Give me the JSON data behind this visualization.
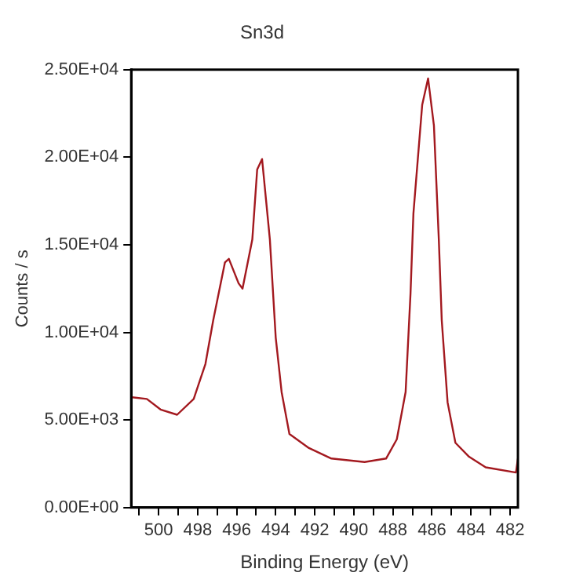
{
  "chart_data": {
    "type": "line",
    "title": "Sn3d",
    "xlabel": "Binding Energy (eV)",
    "ylabel": "Counts / s",
    "xlim": [
      501.4,
      481.6
    ],
    "xticks": [
      {
        "value": 501,
        "label": null
      },
      500,
      {
        "value": 499,
        "label": null
      },
      498,
      {
        "value": 497,
        "label": null
      },
      496,
      {
        "value": 495,
        "label": null
      },
      494,
      {
        "value": 493,
        "label": null
      },
      492,
      {
        "value": 491,
        "label": null
      },
      490,
      {
        "value": 489,
        "label": null
      },
      488,
      {
        "value": 487,
        "label": null
      },
      486,
      {
        "value": 485,
        "label": null
      },
      484,
      {
        "value": 483,
        "label": null
      },
      482
    ],
    "ylim": [
      0,
      25000
    ],
    "yticks": [
      {
        "value": 0,
        "label": "0.00E+00"
      },
      {
        "value": 5000,
        "label": "5.00E+03"
      },
      {
        "value": 10000,
        "label": "1.00E+04"
      },
      {
        "value": 15000,
        "label": "1.50E+04"
      },
      {
        "value": 20000,
        "label": "2.00E+04"
      },
      {
        "value": 25000,
        "label": "2.50E+04"
      }
    ],
    "grid": false,
    "legend": false,
    "marker": "none",
    "line_style": "solid",
    "series": [
      {
        "color": "#a3191f",
        "x": [
          501.35,
          500.6,
          499.9,
          499.05,
          498.2,
          497.6,
          497.2,
          496.6,
          496.4,
          495.9,
          495.7,
          495.2,
          494.95,
          494.7,
          494.3,
          494.0,
          493.7,
          493.3,
          492.3,
          491.15,
          489.45,
          488.35,
          487.8,
          487.35,
          487.1,
          486.95,
          486.5,
          486.2,
          485.9,
          485.65,
          485.5,
          485.2,
          484.8,
          484.1,
          483.25,
          481.7,
          481.6
        ],
        "values": [
          6300,
          6200,
          5600,
          5300,
          6200,
          8200,
          10700,
          14000,
          14200,
          12800,
          12500,
          15300,
          19300,
          19900,
          15300,
          9700,
          6600,
          4200,
          3400,
          2800,
          2600,
          2800,
          3900,
          6600,
          12200,
          16800,
          23000,
          24500,
          21800,
          15300,
          10700,
          6000,
          3700,
          2900,
          2300,
          2000,
          2800
        ]
      }
    ]
  }
}
